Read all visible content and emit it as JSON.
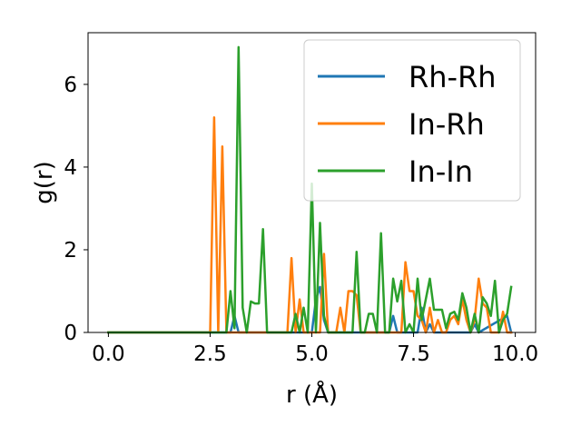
{
  "chart_data": {
    "type": "line",
    "xlabel": "r (Å)",
    "ylabel": "g(r)",
    "xlim": [
      -0.5,
      10.5
    ],
    "ylim": [
      0,
      7.25
    ],
    "xticks": [
      0.0,
      2.5,
      5.0,
      7.5,
      10.0
    ],
    "xtick_labels": [
      "0.0",
      "2.5",
      "5.0",
      "7.5",
      "10.0"
    ],
    "yticks": [
      0,
      2,
      4,
      6
    ],
    "ytick_labels": [
      "0",
      "2",
      "4",
      "6"
    ],
    "grid": false,
    "legend_position": "top-right",
    "series": [
      {
        "name": "Rh-Rh",
        "color": "#1f77b4",
        "x": [
          0,
          2.9,
          3.0,
          3.1,
          3.2,
          3.3,
          4.9,
          5.0,
          5.1,
          5.2,
          5.3,
          5.4,
          6.8,
          6.9,
          7.0,
          7.1,
          7.5,
          7.6,
          7.7,
          7.8,
          7.9,
          8.0,
          8.9,
          9.0,
          9.1,
          9.8,
          9.9
        ],
        "y": [
          0,
          0,
          0,
          0.4,
          0,
          0,
          0,
          0,
          0.8,
          1.1,
          0.3,
          0,
          0,
          0,
          0.4,
          0,
          0,
          0,
          0.6,
          0,
          0.2,
          0,
          0,
          0.2,
          0,
          0.4,
          0
        ]
      },
      {
        "name": "In-Rh",
        "color": "#ff7f0e",
        "x": [
          0,
          2.5,
          2.6,
          2.7,
          2.8,
          2.9,
          4.4,
          4.5,
          4.6,
          4.7,
          4.8,
          4.9,
          5.0,
          5.1,
          5.2,
          5.3,
          5.4,
          5.5,
          5.6,
          5.7,
          5.8,
          5.9,
          6.0,
          6.1,
          6.2,
          6.3,
          6.4,
          6.5,
          6.6,
          6.7,
          6.8,
          6.9,
          7.0,
          7.1,
          7.2,
          7.3,
          7.4,
          7.5,
          7.6,
          7.7,
          7.8,
          7.9,
          8.0,
          8.1,
          8.2,
          8.3,
          8.4,
          8.5,
          8.6,
          8.7,
          8.8,
          8.9,
          9.0,
          9.1,
          9.2,
          9.3,
          9.4,
          9.5,
          9.6,
          9.7,
          9.8,
          9.9
        ],
        "y": [
          0,
          0,
          5.2,
          0,
          4.5,
          0,
          0,
          1.8,
          0,
          0.8,
          0,
          0,
          0,
          0,
          0,
          1.9,
          0,
          0,
          0,
          0.6,
          0,
          1.0,
          1.0,
          0.9,
          0,
          0,
          0,
          0,
          0,
          0,
          0,
          0,
          0,
          0,
          0,
          1.7,
          1.0,
          1.0,
          0.4,
          0.3,
          0,
          0.6,
          0,
          0.3,
          0,
          0,
          0.3,
          0.4,
          0.2,
          0.8,
          0.3,
          0,
          0.3,
          1.3,
          0.7,
          0.6,
          0,
          0,
          0,
          0.5,
          0,
          0
        ]
      },
      {
        "name": "In-In",
        "color": "#2ca02c",
        "x": [
          0,
          2.9,
          3.0,
          3.1,
          3.2,
          3.3,
          3.4,
          3.5,
          3.6,
          3.7,
          3.8,
          3.9,
          4.0,
          4.5,
          4.6,
          4.7,
          4.8,
          4.9,
          5.0,
          5.1,
          5.2,
          5.3,
          5.4,
          5.5,
          6.0,
          6.1,
          6.2,
          6.3,
          6.4,
          6.5,
          6.6,
          6.7,
          6.8,
          6.9,
          7.0,
          7.1,
          7.2,
          7.3,
          7.4,
          7.5,
          7.6,
          7.7,
          7.8,
          7.9,
          8.0,
          8.1,
          8.2,
          8.3,
          8.4,
          8.5,
          8.6,
          8.7,
          8.8,
          8.9,
          9.0,
          9.1,
          9.2,
          9.3,
          9.4,
          9.5,
          9.6,
          9.7,
          9.8,
          9.9
        ],
        "y": [
          0,
          0,
          1.0,
          0.1,
          6.9,
          0.6,
          0,
          0.75,
          0.7,
          0.7,
          2.5,
          0,
          0,
          0,
          0.45,
          0,
          0.6,
          0,
          3.6,
          0,
          2.65,
          0.4,
          0,
          0,
          0,
          1.95,
          0,
          0,
          0.45,
          0.45,
          0,
          2.4,
          0,
          0,
          1.3,
          0.75,
          1.25,
          0,
          0.2,
          0,
          1.3,
          0.3,
          0.8,
          1.3,
          0.55,
          0.55,
          0.55,
          0.1,
          0.45,
          0.5,
          0.3,
          0.95,
          0.6,
          0,
          0.45,
          0,
          0.85,
          0.7,
          0.4,
          1.25,
          0,
          0.3,
          0.45,
          1.1
        ]
      }
    ]
  }
}
